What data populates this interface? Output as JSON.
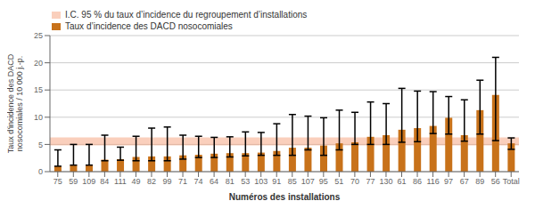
{
  "chart_data": {
    "type": "bar",
    "xlabel": "Numéros des installations",
    "ylabel": "Taux d'incidence des DACD\nnosocomiales / 10 000 j.-p.",
    "categories": [
      "75",
      "59",
      "109",
      "84",
      "111",
      "49",
      "82",
      "99",
      "71",
      "74",
      "64",
      "81",
      "53",
      "103",
      "91",
      "85",
      "107",
      "95",
      "51",
      "70",
      "77",
      "130",
      "61",
      "86",
      "116",
      "97",
      "67",
      "89",
      "56",
      "Total"
    ],
    "series": [
      {
        "name": "Taux d’incidence des DACD nosocomiales",
        "color": "#C8721A",
        "values": [
          1.0,
          1.2,
          1.2,
          2.2,
          2.3,
          2.7,
          2.8,
          2.8,
          3.0,
          3.1,
          3.3,
          3.4,
          3.4,
          3.5,
          3.8,
          4.4,
          4.4,
          4.8,
          5.2,
          5.4,
          6.4,
          6.7,
          7.7,
          8.0,
          8.4,
          9.9,
          6.7,
          11.3,
          14.1,
          5.2
        ],
        "err_low": [
          0.0,
          0.0,
          0.0,
          0.2,
          0.2,
          0.7,
          0.8,
          0.8,
          0.7,
          0.5,
          0.7,
          0.7,
          0.5,
          0.5,
          0.8,
          1.4,
          0.4,
          1.8,
          1.2,
          0.4,
          1.4,
          1.7,
          2.3,
          2.5,
          1.4,
          3.0,
          1.1,
          4.4,
          8.4,
          1.1
        ],
        "err_high": [
          3.0,
          3.8,
          3.8,
          4.5,
          2.2,
          3.8,
          5.2,
          5.4,
          3.7,
          3.4,
          3.0,
          3.0,
          3.9,
          3.7,
          5.0,
          6.1,
          5.8,
          5.1,
          6.1,
          5.5,
          6.4,
          5.8,
          7.6,
          6.8,
          6.3,
          3.9,
          6.5,
          5.5,
          6.9,
          1.0
        ]
      }
    ],
    "band": {
      "name": "I.C. 95 % du taux d’incidence du regroupement d’installations",
      "color": "#F5A07A",
      "ymin": 4.8,
      "ymax": 6.3
    },
    "ylim": [
      0,
      25
    ],
    "yticks": [
      0,
      5,
      10,
      15,
      20,
      25
    ],
    "grid": true,
    "legend": "upper left"
  }
}
